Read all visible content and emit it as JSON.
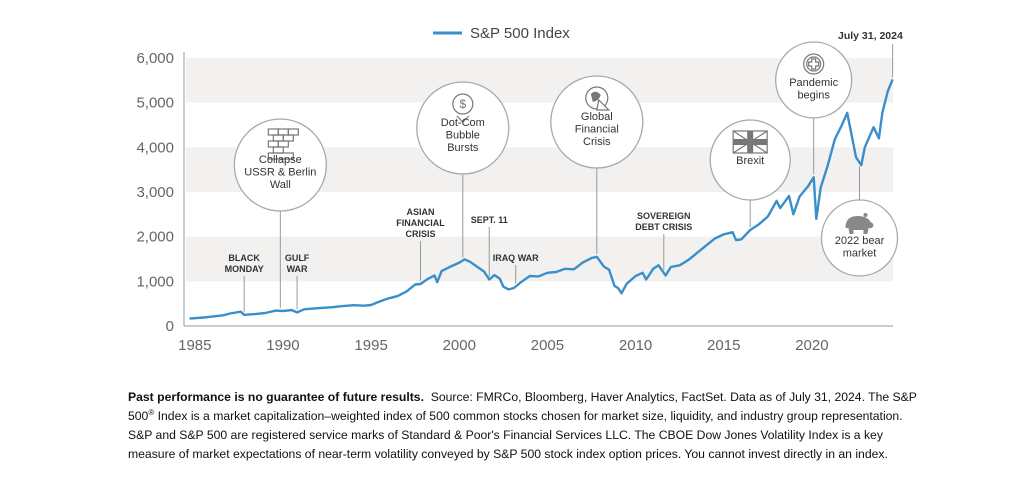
{
  "chart_data": {
    "type": "line",
    "title": "",
    "legend": {
      "label": "S&P 500 Index",
      "position": "top-center"
    },
    "series_color": "#3a8fcb",
    "xlim": [
      1984.5,
      2024.6
    ],
    "ylim": [
      0,
      6000
    ],
    "x_ticks": [
      1985,
      1990,
      1995,
      2000,
      2005,
      2010,
      2015,
      2020
    ],
    "x_tick_labels": [
      "1985",
      "1990",
      "1995",
      "2000",
      "2005",
      "2010",
      "2015",
      "2020"
    ],
    "y_ticks": [
      0,
      1000,
      2000,
      3000,
      4000,
      5000,
      6000
    ],
    "y_tick_labels": [
      "0",
      "1,000",
      "2,000",
      "3,000",
      "4,000",
      "5,000",
      "6,000"
    ],
    "grid": "alternating horizontal bands",
    "end_label": "July 31, 2024",
    "series": [
      {
        "values": [
          [
            1984.7,
            165
          ],
          [
            1985.5,
            190
          ],
          [
            1986.0,
            210
          ],
          [
            1986.6,
            240
          ],
          [
            1987.0,
            280
          ],
          [
            1987.6,
            320
          ],
          [
            1987.8,
            250
          ],
          [
            1988.0,
            255
          ],
          [
            1988.5,
            270
          ],
          [
            1989.0,
            290
          ],
          [
            1989.6,
            345
          ],
          [
            1990.0,
            335
          ],
          [
            1990.5,
            355
          ],
          [
            1990.8,
            305
          ],
          [
            1991.2,
            375
          ],
          [
            1991.7,
            390
          ],
          [
            1992.2,
            405
          ],
          [
            1992.8,
            420
          ],
          [
            1993.4,
            445
          ],
          [
            1994.0,
            465
          ],
          [
            1994.6,
            455
          ],
          [
            1995.0,
            470
          ],
          [
            1995.5,
            550
          ],
          [
            1996.0,
            620
          ],
          [
            1996.5,
            670
          ],
          [
            1997.0,
            770
          ],
          [
            1997.5,
            930
          ],
          [
            1997.8,
            940
          ],
          [
            1998.2,
            1050
          ],
          [
            1998.6,
            1130
          ],
          [
            1998.75,
            980
          ],
          [
            1999.0,
            1230
          ],
          [
            1999.5,
            1330
          ],
          [
            2000.0,
            1420
          ],
          [
            2000.3,
            1490
          ],
          [
            2000.6,
            1440
          ],
          [
            2001.0,
            1330
          ],
          [
            2001.4,
            1220
          ],
          [
            2001.7,
            1040
          ],
          [
            2002.0,
            1140
          ],
          [
            2002.3,
            1060
          ],
          [
            2002.5,
            880
          ],
          [
            2002.8,
            820
          ],
          [
            2003.1,
            850
          ],
          [
            2003.5,
            980
          ],
          [
            2004.0,
            1120
          ],
          [
            2004.5,
            1110
          ],
          [
            2005.0,
            1190
          ],
          [
            2005.5,
            1210
          ],
          [
            2006.0,
            1280
          ],
          [
            2006.5,
            1270
          ],
          [
            2007.0,
            1420
          ],
          [
            2007.5,
            1520
          ],
          [
            2007.8,
            1550
          ],
          [
            2008.2,
            1330
          ],
          [
            2008.5,
            1260
          ],
          [
            2008.8,
            900
          ],
          [
            2009.0,
            850
          ],
          [
            2009.2,
            735
          ],
          [
            2009.5,
            950
          ],
          [
            2010.0,
            1120
          ],
          [
            2010.4,
            1190
          ],
          [
            2010.6,
            1040
          ],
          [
            2011.0,
            1280
          ],
          [
            2011.3,
            1360
          ],
          [
            2011.7,
            1130
          ],
          [
            2012.0,
            1320
          ],
          [
            2012.5,
            1360
          ],
          [
            2013.0,
            1480
          ],
          [
            2013.5,
            1640
          ],
          [
            2014.0,
            1800
          ],
          [
            2014.5,
            1960
          ],
          [
            2015.0,
            2050
          ],
          [
            2015.5,
            2100
          ],
          [
            2015.7,
            1920
          ],
          [
            2016.0,
            1940
          ],
          [
            2016.5,
            2150
          ],
          [
            2017.0,
            2280
          ],
          [
            2017.5,
            2450
          ],
          [
            2018.0,
            2800
          ],
          [
            2018.2,
            2640
          ],
          [
            2018.7,
            2910
          ],
          [
            2018.95,
            2500
          ],
          [
            2019.3,
            2900
          ],
          [
            2019.8,
            3140
          ],
          [
            2020.1,
            3330
          ],
          [
            2020.25,
            2400
          ],
          [
            2020.5,
            3100
          ],
          [
            2020.9,
            3600
          ],
          [
            2021.3,
            4180
          ],
          [
            2021.7,
            4500
          ],
          [
            2022.0,
            4770
          ],
          [
            2022.5,
            3780
          ],
          [
            2022.8,
            3600
          ],
          [
            2023.0,
            4000
          ],
          [
            2023.5,
            4450
          ],
          [
            2023.8,
            4200
          ],
          [
            2024.0,
            4780
          ],
          [
            2024.3,
            5250
          ],
          [
            2024.58,
            5520
          ]
        ]
      }
    ],
    "annotations": [
      {
        "id": "black-monday",
        "lines": [
          "BLACK",
          "MONDAY"
        ],
        "x": 1987.8
      },
      {
        "id": "gulf-war",
        "lines": [
          "GULF",
          "WAR"
        ],
        "x": 1990.8
      },
      {
        "id": "asian-crisis",
        "lines": [
          "ASIAN",
          "FINANCIAL",
          "CRISIS"
        ],
        "x": 1997.8
      },
      {
        "id": "sept-11",
        "lines": [
          "SEPT. 11"
        ],
        "x": 2001.7
      },
      {
        "id": "iraq-war",
        "lines": [
          "IRAQ WAR"
        ],
        "x": 2003.2
      },
      {
        "id": "sovereign-debt",
        "lines": [
          "SOVEREIGN",
          "DEBT CRISIS"
        ],
        "x": 2011.6
      }
    ],
    "bubbles": [
      {
        "id": "ussr",
        "icon": "brick-wall-icon",
        "lines": [
          "Collapse",
          "USSR & Berlin",
          "Wall"
        ],
        "x": 1989.85
      },
      {
        "id": "dotcom",
        "icon": "dollar-down-icon",
        "lines": [
          "Dot-Com",
          "Bubble",
          "Bursts"
        ],
        "x": 2000.2
      },
      {
        "id": "gfc",
        "icon": "broken-globe-icon",
        "lines": [
          "Global",
          "Financial",
          "Crisis"
        ],
        "x": 2007.8
      },
      {
        "id": "brexit",
        "icon": "uk-flag-icon",
        "lines": [
          "Brexit"
        ],
        "x": 2016.5
      },
      {
        "id": "pandemic",
        "icon": "medical-cross-icon",
        "lines": [
          "Pandemic",
          "begins"
        ],
        "x": 2020.1
      },
      {
        "id": "bear",
        "icon": "bear-icon",
        "lines": [
          "2022 bear",
          "market"
        ],
        "x": 2022.7
      }
    ]
  },
  "footnote": {
    "bold": "Past performance is no guarantee of future results.",
    "part1": "Source: FMRCo, Bloomberg, Haver Analytics, FactSet. Data as of July 31, 2024. The S&P 500",
    "sup": "®",
    "part2": "Index is a market capitalization–weighted index of 500 common stocks chosen for market size, liquidity, and industry group representation. S&P and S&P 500 are registered service marks of Standard & Poor's Financial Services LLC. The CBOE Dow Jones Volatility Index is a key measure of market expectations of near-term volatility conveyed by S&P 500 stock index option prices. You cannot invest directly in an index."
  }
}
